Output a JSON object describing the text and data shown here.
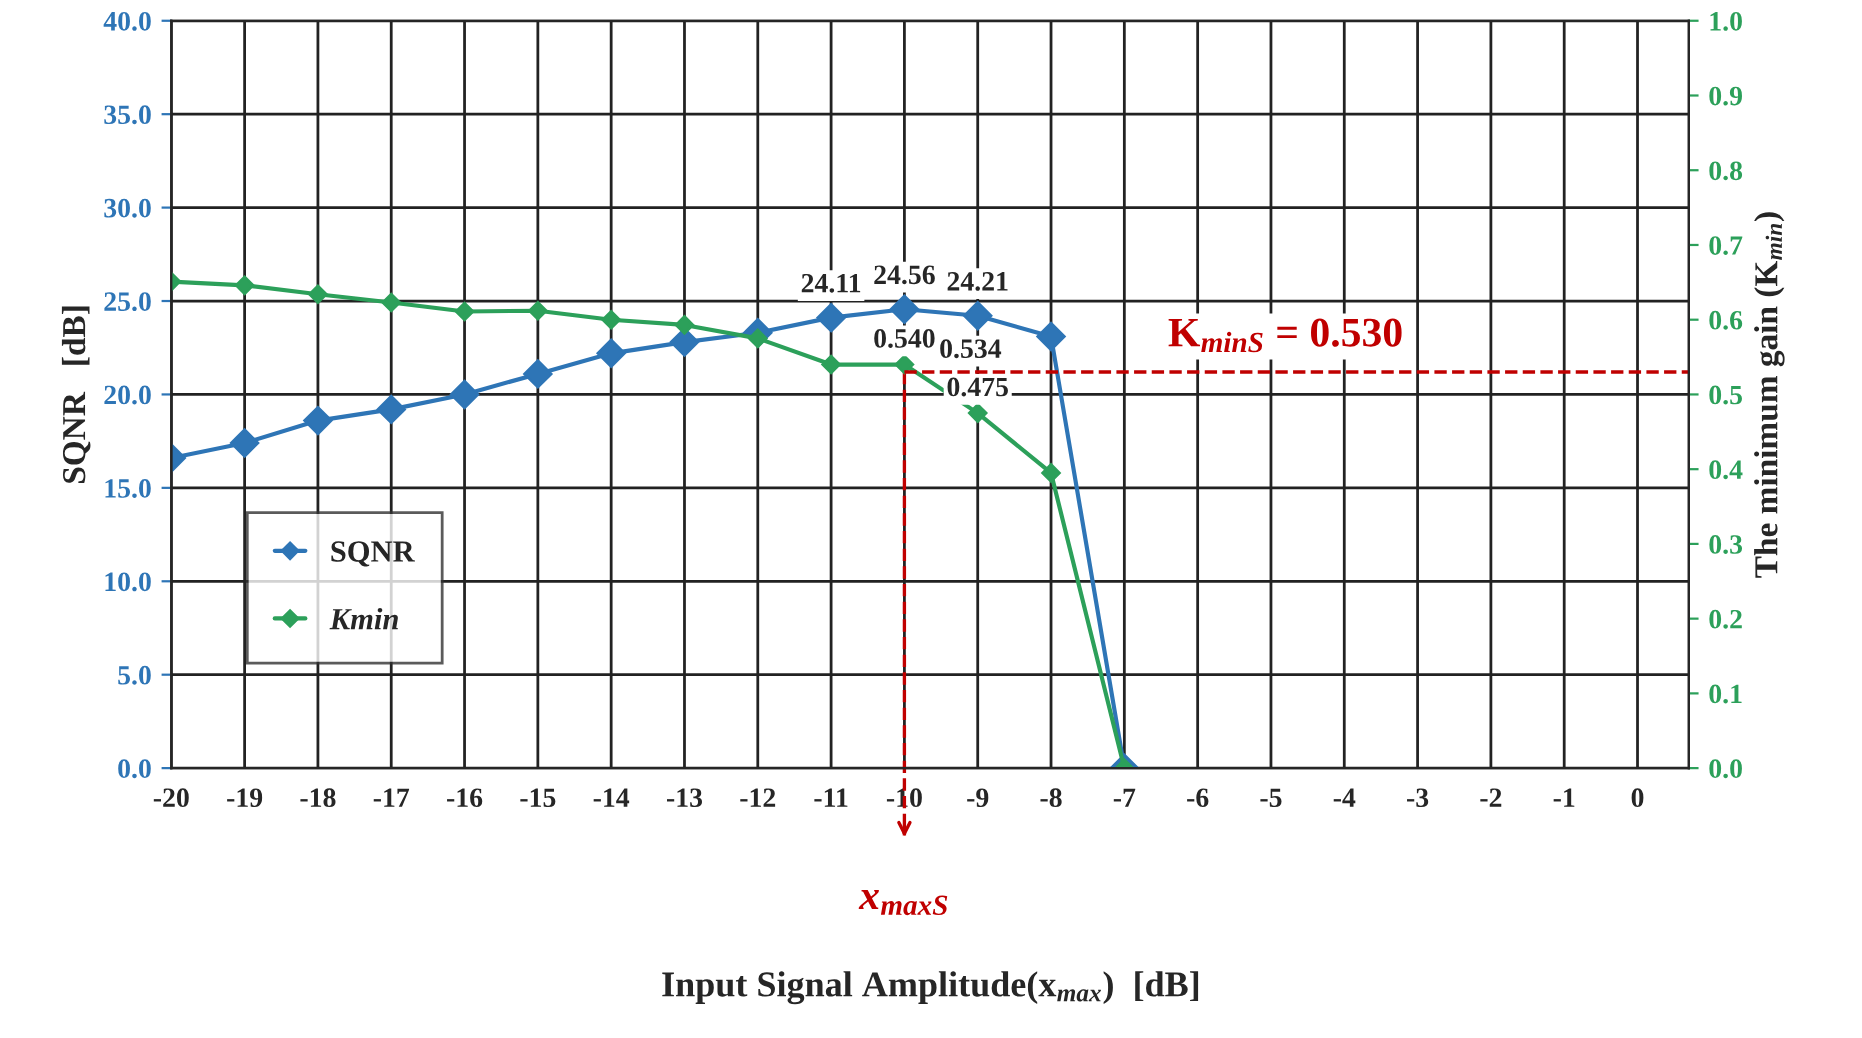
{
  "chart_data": {
    "type": "line",
    "xlabel": "Input Signal Amplitude(x$_{max}$)  [dB]",
    "ylabel": "SQNR   [dB]",
    "y2label": "The minimum gain (K$_{min}$)",
    "x": [
      -20,
      -19,
      -18,
      -17,
      -16,
      -15,
      -14,
      -13,
      -12,
      -11,
      -10,
      -9,
      -8,
      -7
    ],
    "series": [
      {
        "name": "SQNR",
        "color": "#2e75b6",
        "values": [
          16.6,
          17.4,
          18.6,
          19.2,
          20.0,
          21.1,
          22.2,
          22.8,
          23.3,
          24.11,
          24.56,
          24.21,
          23.1,
          0
        ],
        "value_labels": [
          null,
          null,
          null,
          null,
          null,
          null,
          null,
          null,
          null,
          "24.11",
          "24.56",
          "24.21",
          null,
          null
        ]
      },
      {
        "name": "Kmin",
        "color": "#2ca05a",
        "axis": "y2",
        "values": [
          0.651,
          0.646,
          0.634,
          0.623,
          0.611,
          0.612,
          0.6,
          0.593,
          0.575,
          0.54,
          0.54,
          0.475,
          0.395,
          0
        ],
        "value_labels": [
          null,
          null,
          null,
          null,
          null,
          null,
          null,
          null,
          null,
          null,
          "0.540",
          "0.475",
          null,
          null
        ]
      }
    ],
    "xlim": [
      -20,
      0.7
    ],
    "xticks": [
      -20,
      -19,
      -18,
      -17,
      -16,
      -15,
      -14,
      -13,
      -12,
      -11,
      -10,
      -9,
      -8,
      -7,
      -6,
      -5,
      -4,
      -3,
      -2,
      -1,
      0
    ],
    "ylim": [
      0,
      40
    ],
    "yticks": [
      {
        "value": 0,
        "label": "0.0"
      },
      {
        "value": 5,
        "label": "5.0"
      },
      {
        "value": 10,
        "label": "10.0"
      },
      {
        "value": 15,
        "label": "15.0"
      },
      {
        "value": 20,
        "label": "20.0"
      },
      {
        "value": 25,
        "label": "25.0"
      },
      {
        "value": 30,
        "label": "30.0"
      },
      {
        "value": 35,
        "label": "35.0"
      },
      {
        "value": 40,
        "label": "40.0"
      }
    ],
    "y2lim": [
      0,
      1
    ],
    "y2ticks": [
      {
        "value": 0,
        "label": "0.0"
      },
      {
        "value": 0.1,
        "label": "0.1"
      },
      {
        "value": 0.2,
        "label": "0.2"
      },
      {
        "value": 0.3,
        "label": "0.3"
      },
      {
        "value": 0.4,
        "label": "0.4"
      },
      {
        "value": 0.5,
        "label": "0.5"
      },
      {
        "value": 0.6,
        "label": "0.6"
      },
      {
        "value": 0.7,
        "label": "0.7"
      },
      {
        "value": 0.8,
        "label": "0.8"
      },
      {
        "value": 0.9,
        "label": "0.9"
      },
      {
        "value": 1.0,
        "label": "1.0"
      }
    ],
    "ref_lines": [
      {
        "axis": "y2",
        "value": 0.53,
        "label": "K$_{minS}$ = 0.530",
        "color": "#c00000",
        "line_style": "dashed"
      },
      {
        "axis": "x",
        "value": -10,
        "label": "x$_{maxS}$",
        "color": "#c00000",
        "line_style": "dashed"
      }
    ],
    "annotations": [
      "0.534"
    ],
    "grid": true,
    "legend": "bottom left",
    "marker": "diamond",
    "line_style": "solid"
  }
}
